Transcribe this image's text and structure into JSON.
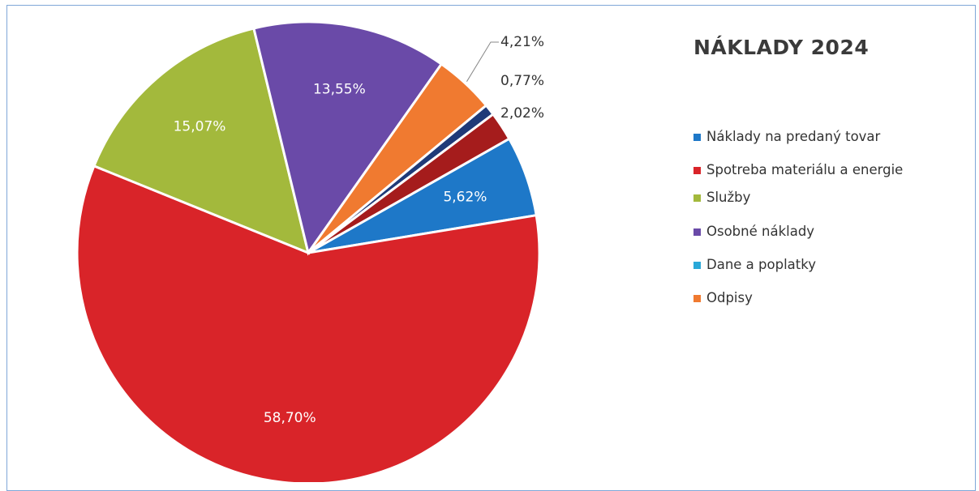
{
  "chart_data": {
    "type": "pie",
    "title": "NÁKLADY 2024",
    "categories": [
      "Náklady na predaný tovar",
      "Spotreba materiálu a energie",
      "Služby",
      "Osobné náklady",
      "Dane a poplatky",
      "Odpisy",
      null,
      null
    ],
    "values": [
      5.62,
      58.7,
      15.07,
      13.55,
      0,
      4.21,
      0.77,
      2.02
    ],
    "value_labels": [
      "5,62%",
      "58,70%",
      "15,07%",
      "13,55%",
      null,
      "4,21%",
      "0,77%",
      "2,02%"
    ],
    "colors": [
      "#1e78c8",
      "#d92429",
      "#a3b93c",
      "#6a4aa8",
      "#2aa8d8",
      "#f07a30",
      "#1f3a78",
      "#a51c1c"
    ],
    "legend": "right"
  }
}
